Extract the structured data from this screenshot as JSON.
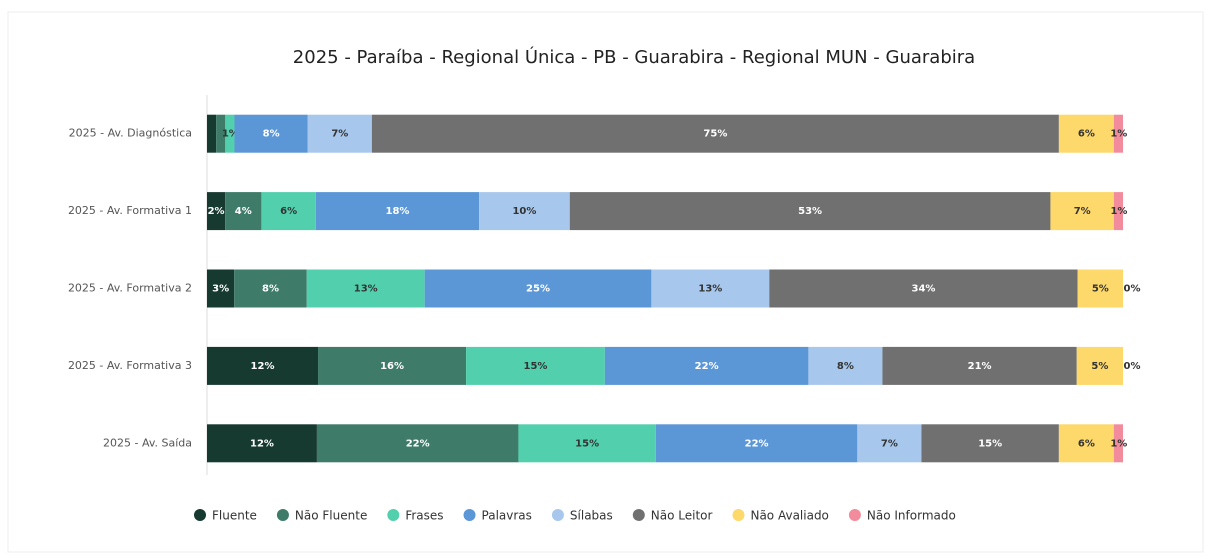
{
  "chart_data": {
    "type": "stacked-bar-horizontal",
    "title": "2025 - Paraíba - Regional Única - PB - Guarabira - Regional MUN - Guarabira",
    "categories": [
      "2025 - Av. Diagnóstica",
      "2025 - Av. Formativa 1",
      "2025 - Av. Formativa 2",
      "2025 - Av. Formativa 3",
      "2025 - Av. Saída"
    ],
    "series": [
      {
        "name": "Fluente",
        "color": "#173a30",
        "values": [
          1,
          2,
          3,
          12,
          12
        ],
        "value_labels": [
          null,
          "2%",
          "3%",
          "12%",
          "12%"
        ]
      },
      {
        "name": "Não Fluente",
        "color": "#3e7b69",
        "values": [
          1,
          4,
          8,
          16,
          22
        ],
        "value_labels": [
          null,
          "4%",
          "8%",
          "16%",
          "22%"
        ]
      },
      {
        "name": "Frases",
        "color": "#52d0ad",
        "values": [
          1,
          6,
          13,
          15,
          15
        ],
        "value_labels": [
          "1%",
          "6%",
          "13%",
          "15%",
          "15%"
        ]
      },
      {
        "name": "Palavras",
        "color": "#5b97d6",
        "values": [
          8,
          18,
          25,
          22,
          22
        ],
        "value_labels": [
          "8%",
          "18%",
          "25%",
          "22%",
          "22%"
        ]
      },
      {
        "name": "Sílabas",
        "color": "#a7c8ec",
        "values": [
          7,
          10,
          13,
          8,
          7
        ],
        "value_labels": [
          "7%",
          "10%",
          "13%",
          "8%",
          "7%"
        ]
      },
      {
        "name": "Não Leitor",
        "color": "#707070",
        "values": [
          75,
          53,
          34,
          21,
          15
        ],
        "value_labels": [
          "75%",
          "53%",
          "34%",
          "21%",
          "15%"
        ]
      },
      {
        "name": "Não Avaliado",
        "color": "#fdd86a",
        "values": [
          6,
          7,
          5,
          5,
          6
        ],
        "value_labels": [
          "6%",
          "7%",
          "5%",
          "5%",
          "6%"
        ]
      },
      {
        "name": "Não Informado",
        "color": "#f28b9c",
        "values": [
          1,
          1,
          0,
          0,
          1
        ],
        "value_labels": [
          "1%",
          "1%",
          "0%",
          "0%",
          "1%"
        ]
      }
    ]
  }
}
